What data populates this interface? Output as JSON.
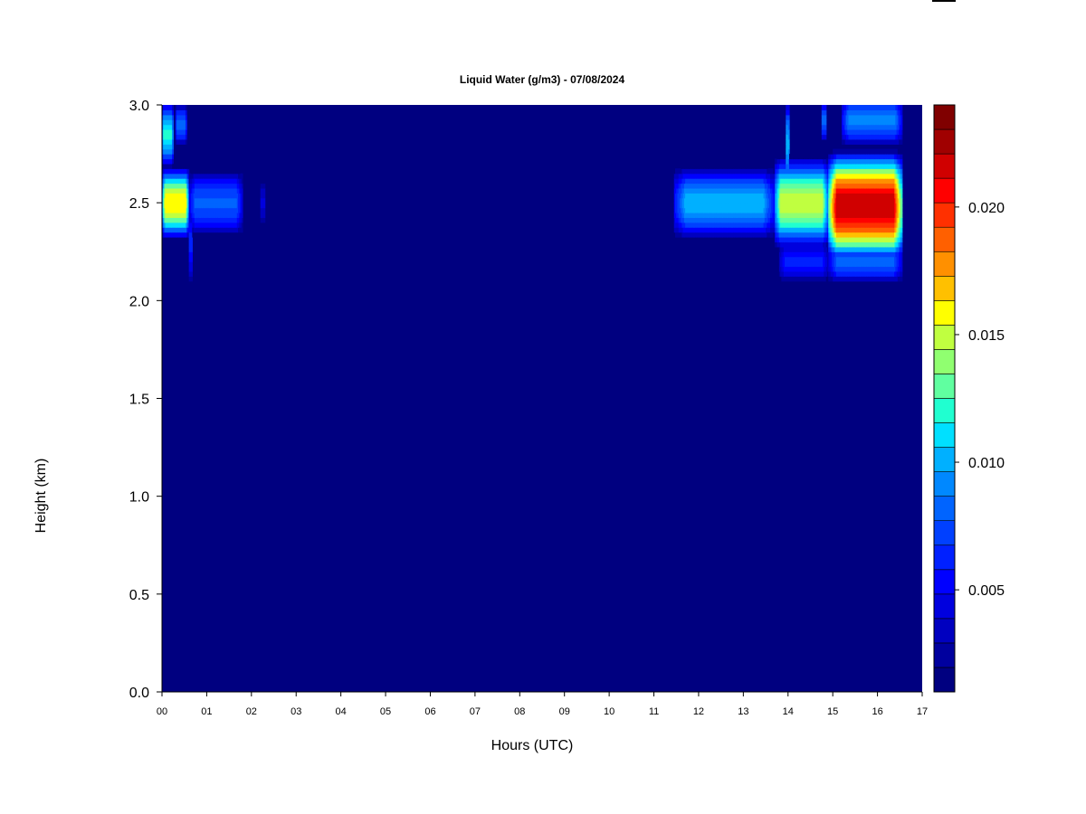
{
  "chart_data": {
    "type": "heatmap",
    "title": "Liquid Water (g/m3) - 07/08/2024",
    "xlabel": "Hours (UTC)",
    "ylabel": "Height (km)",
    "xlim": [
      0,
      17
    ],
    "ylim": [
      0,
      3
    ],
    "x_ticks": [
      "00",
      "01",
      "02",
      "03",
      "04",
      "05",
      "06",
      "07",
      "08",
      "09",
      "10",
      "11",
      "12",
      "13",
      "14",
      "15",
      "16",
      "17"
    ],
    "y_ticks": [
      "0.0",
      "0.5",
      "1.0",
      "1.5",
      "2.0",
      "2.5",
      "3.0"
    ],
    "colorbar": {
      "min": 0.001,
      "max": 0.024,
      "ticks": [
        "0.005",
        "0.010",
        "0.015",
        "0.020"
      ],
      "colors": [
        "#000080",
        "#00009e",
        "#0000c0",
        "#0000de",
        "#0000ff",
        "#0020ff",
        "#0040ff",
        "#0064ff",
        "#0088ff",
        "#00b0ff",
        "#00e0ff",
        "#20ffd0",
        "#60ffa0",
        "#90ff70",
        "#c0ff40",
        "#ffff00",
        "#ffc000",
        "#ff9000",
        "#ff6000",
        "#ff3000",
        "#ff0000",
        "#d00000",
        "#a00000",
        "#800000"
      ]
    },
    "background_value": 0.0,
    "cloud_layers": [
      {
        "x": [
          0.0,
          0.6
        ],
        "y_center": 2.5,
        "half_width": 0.2,
        "peak": 0.016
      },
      {
        "x": [
          0.0,
          0.25
        ],
        "y_center": 2.85,
        "half_width": 0.18,
        "peak": 0.012
      },
      {
        "x": [
          0.3,
          0.55
        ],
        "y_center": 2.9,
        "half_width": 0.12,
        "peak": 0.008
      },
      {
        "x": [
          0.6,
          0.68
        ],
        "y_center": 2.3,
        "half_width": 0.25,
        "peak": 0.006
      },
      {
        "x": [
          0.6,
          1.8
        ],
        "y_center": 2.5,
        "half_width": 0.18,
        "peak": 0.008
      },
      {
        "x": [
          2.2,
          2.3
        ],
        "y_center": 2.5,
        "half_width": 0.15,
        "peak": 0.004
      },
      {
        "x": [
          11.45,
          13.7
        ],
        "y_center": 2.5,
        "half_width": 0.2,
        "peak": 0.01
      },
      {
        "x": [
          13.7,
          14.9
        ],
        "y_center": 2.5,
        "half_width": 0.25,
        "peak": 0.015
      },
      {
        "x": [
          13.8,
          14.9
        ],
        "y_center": 2.2,
        "half_width": 0.12,
        "peak": 0.006
      },
      {
        "x": [
          14.9,
          16.55
        ],
        "y_center": 2.48,
        "half_width": 0.3,
        "peak": 0.022
      },
      {
        "x": [
          14.9,
          16.55
        ],
        "y_center": 2.2,
        "half_width": 0.12,
        "peak": 0.008
      },
      {
        "x": [
          13.95,
          14.02
        ],
        "y_center": 2.8,
        "half_width": 0.25,
        "peak": 0.01
      },
      {
        "x": [
          14.75,
          14.85
        ],
        "y_center": 2.92,
        "half_width": 0.12,
        "peak": 0.008
      },
      {
        "x": [
          15.2,
          16.55
        ],
        "y_center": 2.92,
        "half_width": 0.14,
        "peak": 0.009
      }
    ]
  }
}
